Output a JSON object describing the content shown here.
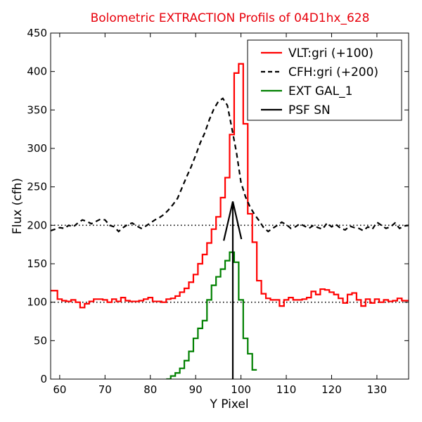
{
  "chart_data": {
    "type": "line",
    "title": "Bolometric EXTRACTION Profils of 04D1hx_628",
    "title_color": "#e8000b",
    "xlabel": "Y Pixel",
    "ylabel": "Flux (cfh)",
    "xlim": [
      58,
      137
    ],
    "ylim": [
      0,
      450
    ],
    "x_ticks": [
      60,
      70,
      80,
      90,
      100,
      110,
      120,
      130
    ],
    "y_ticks": [
      0,
      50,
      100,
      150,
      200,
      250,
      300,
      350,
      400,
      450
    ],
    "legend_position": "top-right",
    "reference_lines": [
      100,
      200
    ],
    "series": [
      {
        "name": "VLT:gri (+100)",
        "color": "#ff0000",
        "style": "steps",
        "x": [
          58,
          59,
          60,
          61,
          62,
          63,
          64,
          65,
          66,
          67,
          68,
          69,
          70,
          71,
          72,
          73,
          74,
          75,
          76,
          77,
          78,
          79,
          80,
          81,
          82,
          83,
          84,
          85,
          86,
          87,
          88,
          89,
          90,
          91,
          92,
          93,
          94,
          95,
          96,
          97,
          98,
          99,
          100,
          101,
          102,
          103,
          104,
          105,
          106,
          107,
          108,
          109,
          110,
          111,
          112,
          113,
          114,
          115,
          116,
          117,
          118,
          119,
          120,
          121,
          122,
          123,
          124,
          125,
          126,
          127,
          128,
          129,
          130,
          131,
          132,
          133,
          134,
          135,
          136,
          137
        ],
        "y": [
          115,
          115,
          104,
          102,
          101,
          103,
          100,
          93,
          98,
          101,
          104,
          104,
          103,
          100,
          104,
          101,
          106,
          102,
          101,
          101,
          102,
          104,
          106,
          101,
          101,
          100,
          104,
          105,
          108,
          113,
          118,
          126,
          136,
          150,
          162,
          177,
          195,
          211,
          236,
          262,
          318,
          398,
          410,
          332,
          215,
          178,
          128,
          111,
          105,
          103,
          103,
          95,
          103,
          106,
          103,
          103,
          104,
          106,
          114,
          110,
          117,
          116,
          113,
          110,
          105,
          99,
          110,
          112,
          103,
          95,
          104,
          99,
          104,
          100,
          103,
          101,
          102,
          105,
          102,
          102
        ]
      },
      {
        "name": "CFH:gri (+200)",
        "color": "#000000",
        "style": "dashed",
        "x": [
          58,
          59,
          60,
          61,
          62,
          63,
          64,
          65,
          66,
          67,
          68,
          69,
          70,
          71,
          72,
          73,
          74,
          75,
          76,
          77,
          78,
          79,
          80,
          81,
          82,
          83,
          84,
          85,
          86,
          87,
          88,
          89,
          90,
          91,
          92,
          93,
          94,
          95,
          96,
          97,
          98,
          99,
          100,
          101,
          102,
          103,
          104,
          105,
          106,
          107,
          108,
          109,
          110,
          111,
          112,
          113,
          114,
          115,
          116,
          117,
          118,
          119,
          120,
          121,
          122,
          123,
          124,
          125,
          126,
          127,
          128,
          129,
          130,
          131,
          132,
          133,
          134,
          135,
          136,
          137
        ],
        "y": [
          193,
          195,
          197,
          196,
          200,
          198,
          203,
          207,
          205,
          202,
          205,
          208,
          207,
          200,
          198,
          192,
          197,
          201,
          203,
          199,
          196,
          199,
          203,
          207,
          210,
          214,
          220,
          227,
          235,
          249,
          263,
          276,
          291,
          307,
          320,
          337,
          351,
          361,
          365,
          356,
          326,
          295,
          256,
          237,
          224,
          214,
          206,
          197,
          192,
          196,
          200,
          204,
          201,
          196,
          198,
          202,
          199,
          196,
          200,
          197,
          195,
          203,
          198,
          201,
          196,
          194,
          199,
          197,
          196,
          193,
          198,
          195,
          204,
          200,
          196,
          198,
          203,
          196,
          199,
          200
        ]
      },
      {
        "name": "EXT GAL_1",
        "color": "#008000",
        "style": "steps",
        "x": [
          84,
          85,
          86,
          87,
          88,
          89,
          90,
          91,
          92,
          93,
          94,
          95,
          96,
          97,
          98,
          99,
          100,
          101,
          102,
          103
        ],
        "y": [
          0,
          4,
          8,
          14,
          24,
          36,
          53,
          66,
          76,
          103,
          122,
          133,
          143,
          154,
          165,
          152,
          103,
          53,
          33,
          12
        ]
      },
      {
        "name": "PSF SN",
        "color": "#000000",
        "style": "solid",
        "peak_x": 98.2,
        "peak_y": 231,
        "left_base": [
          96.2,
          180
        ],
        "right_base": [
          100.1,
          182
        ]
      }
    ]
  }
}
